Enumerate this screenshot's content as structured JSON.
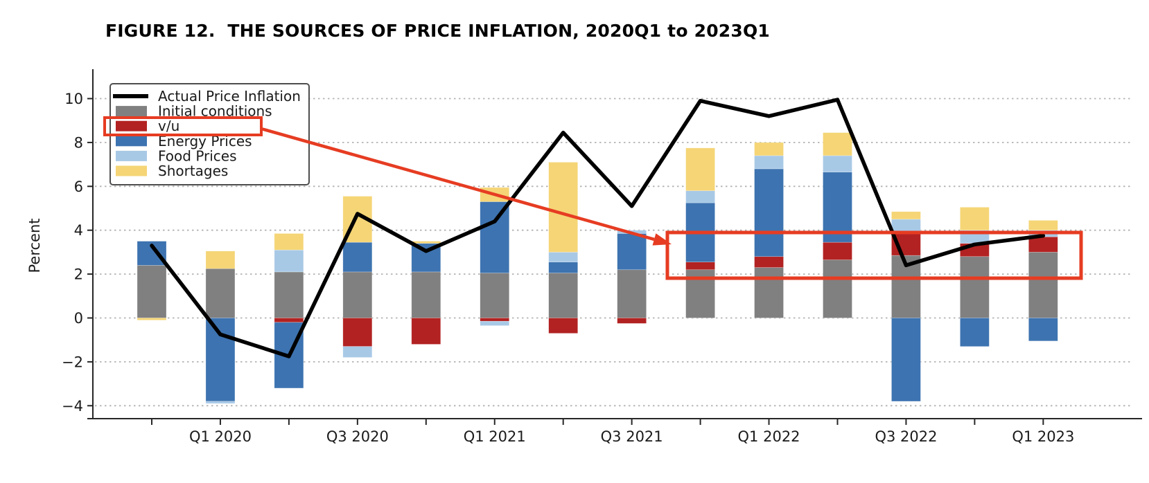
{
  "title": "FIGURE 12.  THE SOURCES OF PRICE INFLATION, 2020Q1 to 2023Q1",
  "chart_data": {
    "type": "bar",
    "subtype": "stacked-bar-with-line-overlay",
    "categories": [
      "2019Q4",
      "2020Q1",
      "2020Q2",
      "2020Q3",
      "2020Q4",
      "2021Q1",
      "2021Q2",
      "2021Q3",
      "2021Q4",
      "2022Q1",
      "2022Q2",
      "2022Q3",
      "2022Q4",
      "2023Q1"
    ],
    "x_axis": {
      "visible_tick_labels": [
        "Q1 2020",
        "Q3 2020",
        "Q1 2021",
        "Q3 2021",
        "Q1 2022",
        "Q3 2022",
        "Q1 2023"
      ],
      "labeled_category_indices": [
        1,
        3,
        5,
        7,
        9,
        11,
        13
      ]
    },
    "ylabel": "Percent",
    "yticks": [
      10,
      8,
      6,
      4,
      2,
      0,
      -2,
      -4
    ],
    "ytick_labels": [
      "10",
      "8",
      "6",
      "4",
      "2",
      "0",
      "−2",
      "−4"
    ],
    "ylim": [
      -4.6,
      11.3
    ],
    "grid": "dotted-horizontal",
    "series": [
      {
        "name": "Initial conditions",
        "color": "#808080",
        "values": [
          2.4,
          2.25,
          2.1,
          2.1,
          2.1,
          2.05,
          2.05,
          2.2,
          2.2,
          2.3,
          2.65,
          2.85,
          2.8,
          3.0
        ]
      },
      {
        "name": "v/u",
        "color": "#b22222",
        "values": [
          0,
          0,
          -0.2,
          -1.3,
          -1.2,
          -0.15,
          -0.7,
          -0.25,
          0.35,
          0.5,
          0.8,
          1.0,
          0.6,
          0.7
        ]
      },
      {
        "name": "Energy Prices",
        "color": "#3d73b0",
        "values": [
          1.1,
          -3.8,
          -3.0,
          1.35,
          1.3,
          3.25,
          0.5,
          1.65,
          2.7,
          4.0,
          3.2,
          -3.8,
          -1.3,
          -1.05
        ]
      },
      {
        "name": "Food Prices",
        "color": "#a8c9e6",
        "values": [
          0,
          -0.1,
          1.0,
          -0.5,
          0,
          -0.2,
          0.45,
          0.15,
          0.55,
          0.6,
          0.75,
          0.65,
          0.6,
          0.3
        ]
      },
      {
        "name": "Shortages",
        "color": "#f5d576",
        "values": [
          -0.1,
          0.8,
          0.75,
          2.1,
          0.1,
          0.65,
          4.1,
          0,
          1.95,
          0.6,
          1.05,
          0.35,
          1.05,
          0.45
        ]
      }
    ],
    "line_series": {
      "name": "Actual Price Inflation",
      "color": "#000000",
      "values": [
        3.3,
        -0.75,
        -1.75,
        4.75,
        3.05,
        4.4,
        8.45,
        5.1,
        9.9,
        9.2,
        9.95,
        2.4,
        3.35,
        3.75
      ]
    },
    "legend": {
      "position": "upper-left",
      "entries": [
        "Actual Price Inflation",
        "Initial conditions",
        "v/u",
        "Energy Prices",
        "Food Prices",
        "Shortages"
      ]
    },
    "annotations": {
      "color": "#e63c22",
      "legend_highlight": "red box around the v/u legend entry",
      "bars_highlight": "red box around the v/u contributions of 2021Q4-2023Q1 bars (approx. 1.8 to 3.9 percent band)",
      "arrow": "from v/u legend box to highlighted bar region"
    }
  }
}
